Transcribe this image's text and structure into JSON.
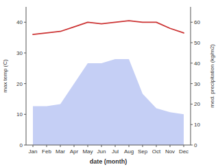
{
  "chart_data": {
    "type": "line",
    "categories": [
      "Jan",
      "Feb",
      "Mar",
      "Apr",
      "May",
      "Jun",
      "Jul",
      "Aug",
      "Sep",
      "Oct",
      "Nov",
      "Dec"
    ],
    "xlabel": "date (month)",
    "ylabel": "max temp (C)",
    "y2label": "med. precipitation (kg/m2)",
    "series": [
      {
        "type": "area",
        "axis": "y2",
        "color": "#c5cff5",
        "values": [
          19,
          19,
          20,
          30,
          40,
          40,
          42,
          42,
          25,
          18,
          16,
          15
        ]
      },
      {
        "type": "line",
        "color": "#cc3333",
        "values": [
          36,
          36.5,
          37,
          38.5,
          40,
          39.5,
          40,
          40.5,
          40,
          40,
          38,
          36.5
        ]
      }
    ],
    "ylim": [
      0,
      45
    ],
    "yticks": [
      0,
      10,
      20,
      30,
      40
    ],
    "y2lim": [
      0,
      67.5
    ],
    "y2ticks": [
      0,
      10,
      20,
      30,
      40,
      50,
      60
    ],
    "grid": false
  }
}
